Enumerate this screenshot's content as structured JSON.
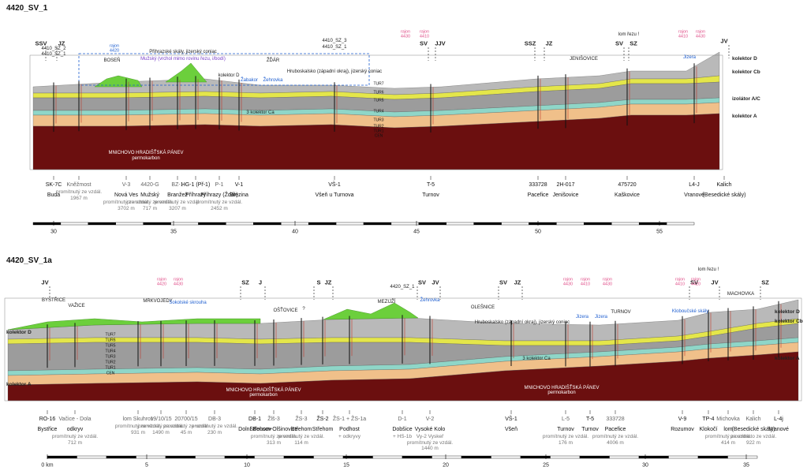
{
  "profiles": [
    {
      "title": "4420_SV_1",
      "directions": [
        "SSV",
        "JZ",
        "SV",
        "JJV",
        "SSZ",
        "JZ",
        "SV",
        "SZ",
        "JV"
      ],
      "fault_note": "lom řezu !",
      "rajon_labels": [
        "rajon 4430",
        "rajon 4410",
        "rajon 4410",
        "rajon 4430",
        "rajon 4420"
      ],
      "labels": [
        "4410_SZ_2",
        "4410_SZ_1",
        "Přihrazské skály, jizerský coniac",
        "Mužský (vrchol mimo rovinu řezu, i/bodí)",
        "BOSEŇ",
        "ŽĎÁR",
        "kolektor D",
        "Žabakor",
        "Žehrovka",
        "4410_SZ_3",
        "4410_SZ_1",
        "Hruboskalsko (západní okraj), jizerský coniac",
        "3 kolektor Ca",
        "MNICHOVO HRADIŠŤSKÁ PÁNEV",
        "permokarbon",
        "JENIŠOVICE",
        "Jizera"
      ],
      "layer_labels": [
        "TUR7",
        "TUR6",
        "TUR5",
        "TUR4",
        "TUR3",
        "TUR2",
        "TUR1",
        "CEN"
      ],
      "side_labels": [
        "kolektor D",
        "kolektor Cb",
        "izolátor A/C",
        "kolektor A"
      ],
      "wells": [
        {
          "name": "SK-7C",
          "place": "Buda"
        },
        {
          "name": "Kněžmost",
          "note": "promítnutý ze vzdál. 1967 m"
        },
        {
          "name": "V-3",
          "place": "Nová Ves",
          "note": "promítnutý ze vzdál. 3702 m"
        },
        {
          "name": "4420-G",
          "place": "Mužský",
          "note": "promítnutý ze vzdál. 717 m"
        },
        {
          "name": "BZ-1",
          "place": "Branžež",
          "note": "promítnutý ze vzdál. 3207 m"
        },
        {
          "name": "HG-1 (Př-1)",
          "place": "Příhrazy"
        },
        {
          "name": "P-1",
          "place": "Příhrazy (Žďár)",
          "note": "promítnutý ze vzdál. 2452 m"
        },
        {
          "name": "V-1",
          "place": "Březina"
        },
        {
          "name": "VŠ-1",
          "place": "Všeň u Turnova"
        },
        {
          "name": "T-5",
          "place": "Turnov"
        },
        {
          "name": "333728",
          "place": "Pacefice"
        },
        {
          "name": "2H-017",
          "place": "Jenišovice"
        },
        {
          "name": "475720",
          "place": "Kaškovice"
        },
        {
          "name": "L4-J",
          "place": "Vranové"
        },
        {
          "name": "Kalich",
          "place": "(Besedické skály)"
        }
      ],
      "scale": [
        "30",
        "35",
        "40",
        "45",
        "50",
        "55"
      ]
    },
    {
      "title": "4420_SV_1a",
      "directions": [
        "JV",
        "SZ",
        "J",
        "S",
        "JZ",
        "SV",
        "JV",
        "SV",
        "JZ",
        "SV",
        "JV",
        "SZ"
      ],
      "fault_note": "lom řezu !",
      "rajon_labels": [
        "rajon 4420",
        "rajon 4430",
        "rajon 4430",
        "rajon 4410",
        "rajon 4430",
        "rajon 4410",
        "rajon 4420"
      ],
      "labels": [
        "BYSTŘICE",
        "VAŽICE",
        "MRKVOJEDY",
        "Sokolské skrouha",
        "OŠŤOVICE",
        "?",
        "MEZIJŽÍ",
        "Žehrovka",
        "OLEŠNICE",
        "Hruboskalsko (západní okraj), jizerský coniac",
        "Jizera",
        "Jizera",
        "TURNOV",
        "Kloboučské skály",
        "MACHOVKA",
        "3 kolektor Ca",
        "MNICHOVO HRADIŠŤSKÁ PÁNEV",
        "permokarbon",
        "MNICHOVO HRADIŠŤSKÁ PÁNEV",
        "permokarbon",
        "4420_SZ_1"
      ],
      "layer_labels": [
        "TUR7",
        "TUR6",
        "TUR5",
        "TUR4",
        "TUR3",
        "TUR2",
        "TUR1",
        "CEN"
      ],
      "side_labels": [
        "kolektor D",
        "kolektor A",
        "kolektor D",
        "kolektor Cb",
        "kolektor A"
      ],
      "wells": [
        {
          "name": "RO-16",
          "place": "Bystřice"
        },
        {
          "name": "Vačice - Dola",
          "place": "odkryv",
          "note": "promítnutý ze vzdál. 712 m"
        },
        {
          "name": "lom Skuhrov",
          "note": "promítnutý ze vzdál. 931 m"
        },
        {
          "name": "19/10/15",
          "note": "promítnutý ze vzdál. 1490 m"
        },
        {
          "name": "20700/15",
          "note": "promítnutý ze vzdál. 45 m"
        },
        {
          "name": "DB-3",
          "note": "promítnutý ze vzdál. 230 m"
        },
        {
          "name": "DB-1",
          "place": "Dolní Bousov"
        },
        {
          "name": "Žlš-3",
          "place": "Střehom-Olšinovice",
          "note": "promítnutý ze vzdál. 313 m"
        },
        {
          "name": "ŽS-3",
          "place": "Střehom",
          "note": "promítnutý ze vzdál. 114 m"
        },
        {
          "name": "ŽS-2",
          "place": "Střehom"
        },
        {
          "name": "ŽS-1 + ŽS-1a",
          "place": "Podhost",
          "note": "+ odkryvy"
        },
        {
          "name": "D-1",
          "place": "Dobšice",
          "note": "+ HS-1b"
        },
        {
          "name": "V-2",
          "place": "Vysoké Kolo",
          "note": "Vy-2 Vyskeř promítnutý ze vzdál. 1440 m"
        },
        {
          "name": "VŠ-1",
          "place": "Všeň"
        },
        {
          "name": "L-5",
          "place": "Turnov",
          "note": "promítnutý ze vzdál. 176 m"
        },
        {
          "name": "T-5",
          "place": "Turnov"
        },
        {
          "name": "333728",
          "place": "Pacefice",
          "note": "promítnutý ze vzdál. 4006 m"
        },
        {
          "name": "V-9",
          "place": "Rozumov"
        },
        {
          "name": "TP-4",
          "place": "Klokočí"
        },
        {
          "name": "Michovka",
          "place": "lom",
          "note": "promítnutý ze vzdál. 414 m"
        },
        {
          "name": "Kalich",
          "place": "(Besedické skály)",
          "note": "promítnuto ze vzdál. 922 m"
        },
        {
          "name": "L-4j",
          "place": "Vranové"
        }
      ],
      "scale": [
        "0 km",
        "5",
        "10",
        "15",
        "20",
        "25",
        "30",
        "35"
      ]
    }
  ]
}
